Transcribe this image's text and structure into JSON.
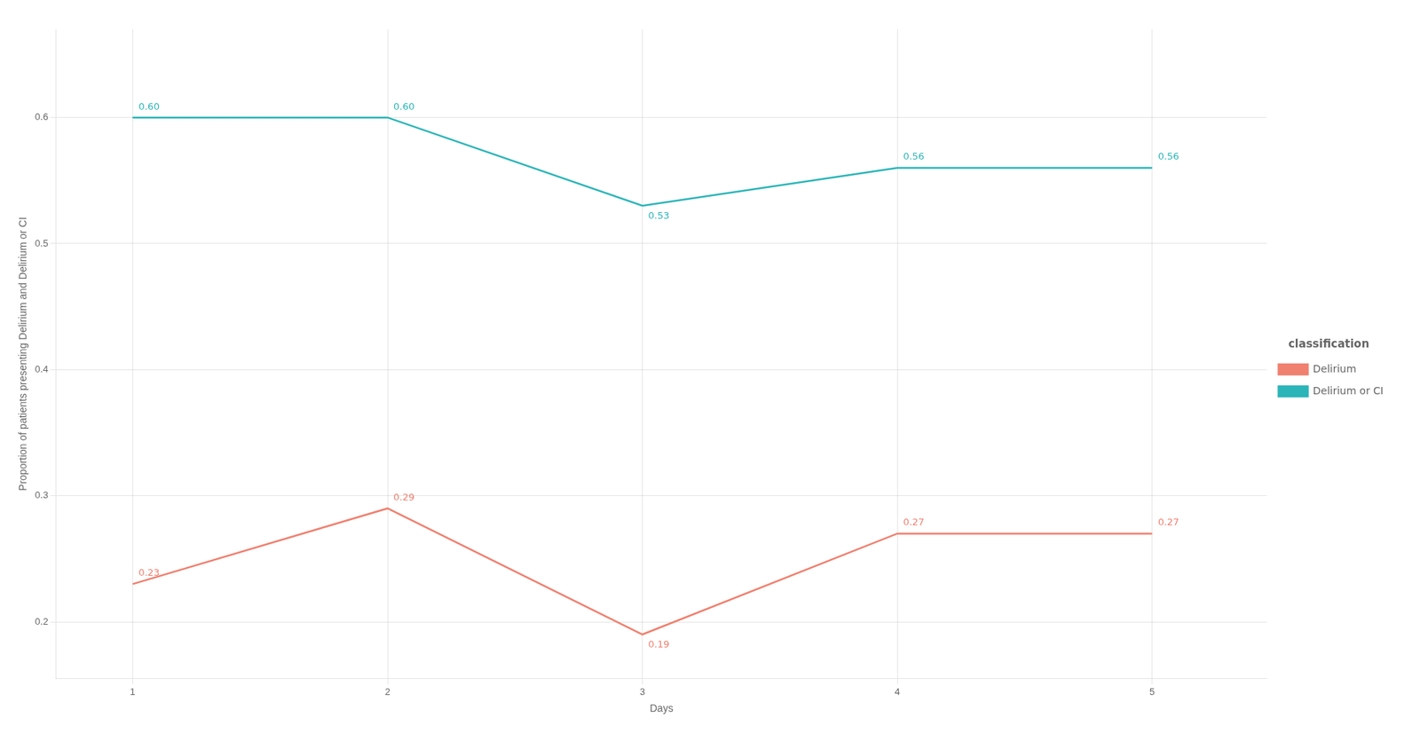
{
  "chart_data": {
    "type": "line",
    "x": [
      1,
      2,
      3,
      4,
      5
    ],
    "series": [
      {
        "name": "Delirium",
        "color": "#F08070",
        "values": [
          0.23,
          0.29,
          0.19,
          0.27,
          0.27
        ]
      },
      {
        "name": "Delirium or CI",
        "color": "#2BB5B8",
        "values": [
          0.6,
          0.6,
          0.53,
          0.56,
          0.56
        ],
        "value_labels": [
          "0.60",
          "0.60",
          "0.53",
          "0.56",
          "0.56"
        ]
      }
    ],
    "xlabel": "Days",
    "ylabel": "Proportion of patients presenting Delirium and Delirium or CI",
    "legend_title": "classification",
    "xlim": [
      0.7,
      5.45
    ],
    "ylim": [
      0.155,
      0.67
    ],
    "xticks": [
      1,
      2,
      3,
      4,
      5
    ],
    "yticks": [
      0.2,
      0.3,
      0.4,
      0.5,
      0.6
    ],
    "grid": true,
    "legend": "right",
    "data_labels": true,
    "marker": "none"
  }
}
